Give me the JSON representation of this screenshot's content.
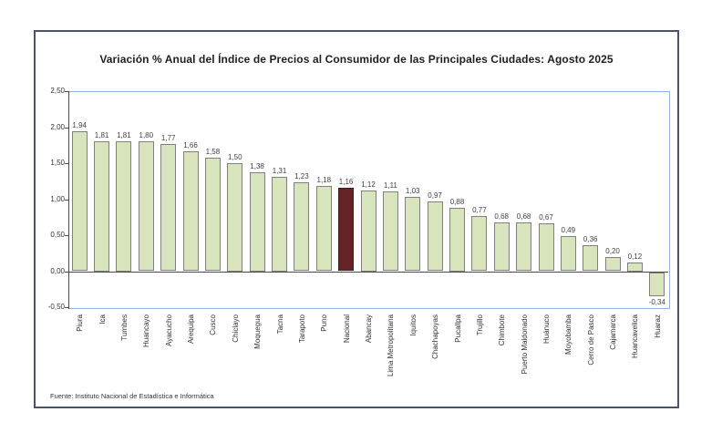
{
  "source": "Fuente: Instituto  Nacional de Estadística  e Informática",
  "chart_data": {
    "type": "bar",
    "title": "Variación % Anual del Índice de Precios al Consumidor de las Principales Ciudades: Agosto 2025",
    "xlabel": "",
    "ylabel": "",
    "categories": [
      "Piura",
      "Ica",
      "Tumbes",
      "Huancayo",
      "Ayacucho",
      "Arequipa",
      "Cusco",
      "Chiclayo",
      "Moquegua",
      "Tacna",
      "Tarapoto",
      "Puno",
      "Nacional",
      "Abancay",
      "Lima Metropolitana",
      "Iquitos",
      "Chachapoyas",
      "Pucallpa",
      "Trujillo",
      "Chimbote",
      "Puerto Maldonado",
      "Huánuco",
      "Moyobamba",
      "Cerro de Pasco",
      "Cajamarca",
      "Huancavelica",
      "Huaraz"
    ],
    "values": [
      1.94,
      1.81,
      1.81,
      1.8,
      1.77,
      1.66,
      1.58,
      1.5,
      1.38,
      1.31,
      1.23,
      1.18,
      1.16,
      1.12,
      1.11,
      1.03,
      0.97,
      0.88,
      0.77,
      0.68,
      0.68,
      0.67,
      0.49,
      0.36,
      0.2,
      0.12,
      -0.34
    ],
    "value_labels": [
      "1,94",
      "1,81",
      "1,81",
      "1,80",
      "1,77",
      "1,66",
      "1,58",
      "1,50",
      "1,38",
      "1,31",
      "1,23",
      "1,18",
      "1,16",
      "1,12",
      "1,11",
      "1,03",
      "0,97",
      "0,88",
      "0,77",
      "0,68",
      "0,68",
      "0,67",
      "0,49",
      "0,36",
      "0,20",
      "0,12",
      "-0,34"
    ],
    "highlight_category": "Nacional",
    "highlight_index": 12,
    "ylim": [
      -0.5,
      2.5
    ],
    "yticks": [
      2.5,
      2.0,
      1.5,
      1.0,
      0.5,
      0.0,
      -0.5
    ],
    "ytick_labels": [
      "2,50",
      "2,00",
      "1,50",
      "1,00",
      "0,50",
      "0,00",
      "-0,50"
    ],
    "bar_color": "#d8e4bc",
    "bar_border_color": "#7f7f7f",
    "highlight_color": "#632423",
    "highlight_border_color": "#4c1b1a",
    "plot_border_color": "#95b3d7",
    "axis_color": "#4a4a4a",
    "grid": false,
    "legend": false
  }
}
